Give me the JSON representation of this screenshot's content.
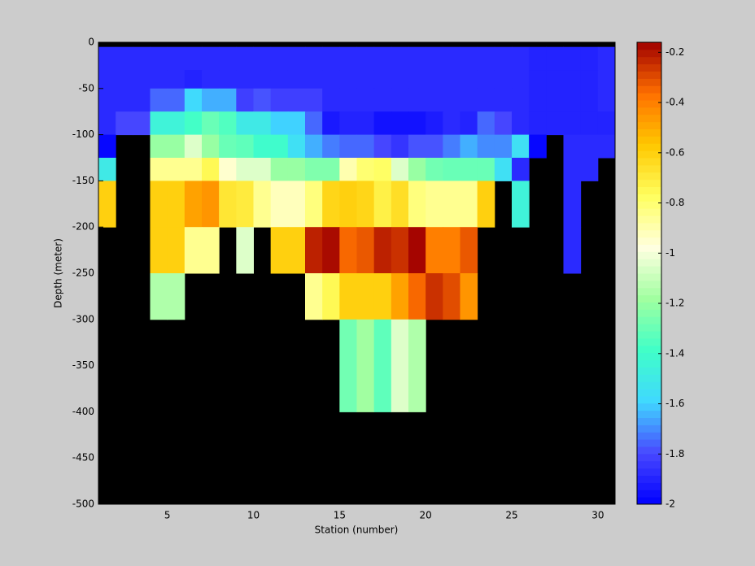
{
  "chart_data": {
    "type": "heatmap",
    "xlabel": "Station (number)",
    "ylabel": "Depth (meter)",
    "xlim": [
      1,
      31
    ],
    "xticks": [
      5,
      10,
      15,
      20,
      25,
      30
    ],
    "ylim": [
      -500,
      0
    ],
    "yticks": [
      -500,
      -450,
      -400,
      -350,
      -300,
      -250,
      -200,
      -150,
      -100,
      -50,
      0
    ],
    "x_edges": [
      1,
      2,
      3,
      4,
      5,
      6,
      7,
      8,
      9,
      10,
      11,
      12,
      13,
      14,
      15,
      16,
      17,
      18,
      19,
      20,
      21,
      22,
      23,
      24,
      25,
      26,
      27,
      28,
      29,
      30,
      31
    ],
    "y_edges": [
      -5,
      -30,
      -50,
      -75,
      -100,
      -125,
      -150,
      -200,
      -250,
      -300,
      -400
    ],
    "z": [
      [
        -1.88,
        -1.88,
        -1.88,
        -1.88,
        -1.88,
        -1.88,
        -1.88,
        -1.88,
        -1.88,
        -1.88,
        -1.88,
        -1.88,
        -1.88,
        -1.88,
        -1.88,
        -1.88,
        -1.88,
        -1.88,
        -1.88,
        -1.88,
        -1.88,
        -1.88,
        -1.88,
        -1.88,
        -1.88,
        -1.9,
        -1.9,
        -1.9,
        -1.9,
        -1.88
      ],
      [
        -1.88,
        -1.88,
        -1.88,
        -1.88,
        -1.88,
        -1.9,
        -1.88,
        -1.88,
        -1.88,
        -1.88,
        -1.88,
        -1.88,
        -1.88,
        -1.88,
        -1.88,
        -1.88,
        -1.88,
        -1.88,
        -1.88,
        -1.88,
        -1.88,
        -1.88,
        -1.88,
        -1.88,
        -1.88,
        -1.9,
        -1.9,
        -1.9,
        -1.9,
        -1.88
      ],
      [
        -1.88,
        -1.88,
        -1.88,
        -1.75,
        -1.75,
        -1.58,
        -1.65,
        -1.65,
        -1.82,
        -1.78,
        -1.82,
        -1.82,
        -1.82,
        -1.88,
        -1.88,
        -1.88,
        -1.88,
        -1.88,
        -1.88,
        -1.88,
        -1.88,
        -1.88,
        -1.88,
        -1.88,
        -1.88,
        -1.9,
        -1.9,
        -1.9,
        -1.9,
        -1.88
      ],
      [
        -1.88,
        -1.8,
        -1.8,
        -1.45,
        -1.45,
        -1.38,
        -1.3,
        -1.35,
        -1.5,
        -1.5,
        -1.6,
        -1.6,
        -1.75,
        -1.93,
        -1.9,
        -1.9,
        -1.95,
        -1.95,
        -1.95,
        -1.92,
        -1.88,
        -1.9,
        -1.75,
        -1.8,
        -1.88,
        -1.9,
        -1.9,
        -1.9,
        -1.9,
        -1.9
      ],
      [
        -1.98,
        null,
        null,
        -1.2,
        -1.2,
        -1.05,
        -1.2,
        -1.3,
        -1.32,
        -1.4,
        -1.4,
        -1.55,
        -1.65,
        -1.72,
        -1.75,
        -1.75,
        -1.8,
        -1.85,
        -1.78,
        -1.78,
        -1.72,
        -1.65,
        -1.7,
        -1.7,
        -1.55,
        -1.98,
        null,
        -1.88,
        -1.88,
        -1.88
      ],
      [
        -1.5,
        null,
        null,
        -0.85,
        -0.85,
        -0.85,
        -0.75,
        -0.95,
        -1.05,
        -1.05,
        -1.2,
        -1.2,
        -1.25,
        -1.25,
        -0.9,
        -0.8,
        -0.78,
        -1.05,
        -1.2,
        -1.28,
        -1.3,
        -1.3,
        -1.3,
        -1.55,
        -1.88,
        null,
        null,
        -1.88,
        -1.88,
        null
      ],
      [
        -0.6,
        null,
        null,
        -0.6,
        -0.6,
        -0.48,
        -0.45,
        -0.68,
        -0.7,
        -0.85,
        -0.92,
        -0.92,
        -0.82,
        -0.62,
        -0.6,
        -0.62,
        -0.72,
        -0.65,
        -0.82,
        -0.85,
        -0.85,
        -0.85,
        -0.6,
        null,
        -1.45,
        null,
        null,
        -1.88,
        null,
        null
      ],
      [
        null,
        null,
        null,
        -0.6,
        -0.6,
        -0.85,
        -0.85,
        null,
        -1.05,
        null,
        -0.6,
        -0.6,
        -0.22,
        -0.18,
        -0.35,
        -0.32,
        -0.22,
        -0.25,
        -0.17,
        -0.4,
        -0.4,
        -0.32,
        null,
        null,
        null,
        null,
        null,
        -1.88,
        null,
        null
      ],
      [
        null,
        null,
        null,
        -1.15,
        -1.15,
        null,
        null,
        null,
        null,
        null,
        null,
        null,
        -0.85,
        -0.75,
        -0.6,
        -0.6,
        -0.6,
        -0.48,
        -0.35,
        -0.25,
        -0.3,
        -0.45,
        null,
        null,
        null,
        null,
        null,
        null,
        null,
        null
      ],
      [
        null,
        null,
        null,
        null,
        null,
        null,
        null,
        null,
        null,
        null,
        null,
        null,
        null,
        null,
        -1.28,
        -1.18,
        -1.32,
        -1.05,
        -1.15,
        null,
        null,
        null,
        null,
        null,
        null,
        null,
        null,
        null,
        null,
        null
      ]
    ],
    "clim": [
      -2,
      -0.16
    ],
    "cticks": [
      -2,
      -1.8,
      -1.6,
      -1.4,
      -1.2,
      -1,
      -0.8,
      -0.6,
      -0.4,
      -0.2
    ],
    "colormap": [
      "#0000ff",
      "#4848ff",
      "#40d8ff",
      "#40ffc8",
      "#a0ffa0",
      "#ffffe0",
      "#ffff60",
      "#ffc800",
      "#ff7000",
      "#a00000"
    ],
    "nan_color": "#000000"
  }
}
